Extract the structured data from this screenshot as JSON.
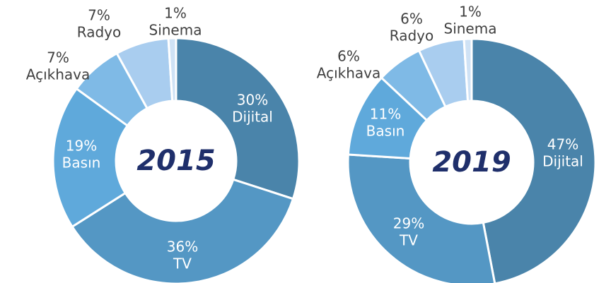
{
  "chart_data": [
    {
      "type": "donut",
      "title": "2015",
      "categories": [
        "Dijital",
        "TV",
        "Basın",
        "Açıkhava",
        "Radyo",
        "Sinema"
      ],
      "values": [
        30,
        36,
        19,
        7,
        7,
        1
      ],
      "value_labels": [
        "30%",
        "36%",
        "19%",
        "7%",
        "7%",
        "1%"
      ],
      "colors": [
        "#4a84aa",
        "#5497c4",
        "#5fa9db",
        "#7fbae6",
        "#a9cdef",
        "#cfe2f5"
      ]
    },
    {
      "type": "donut",
      "title": "2019",
      "categories": [
        "Dijital",
        "TV",
        "Basın",
        "Açıkhava",
        "Radyo",
        "Sinema"
      ],
      "values": [
        47,
        29,
        11,
        6,
        6,
        1
      ],
      "value_labels": [
        "47%",
        "29%",
        "11%",
        "6%",
        "6%",
        "1%"
      ],
      "colors": [
        "#4a84aa",
        "#5497c4",
        "#5fa9db",
        "#7fbae6",
        "#a9cdef",
        "#cfe2f5"
      ]
    }
  ]
}
